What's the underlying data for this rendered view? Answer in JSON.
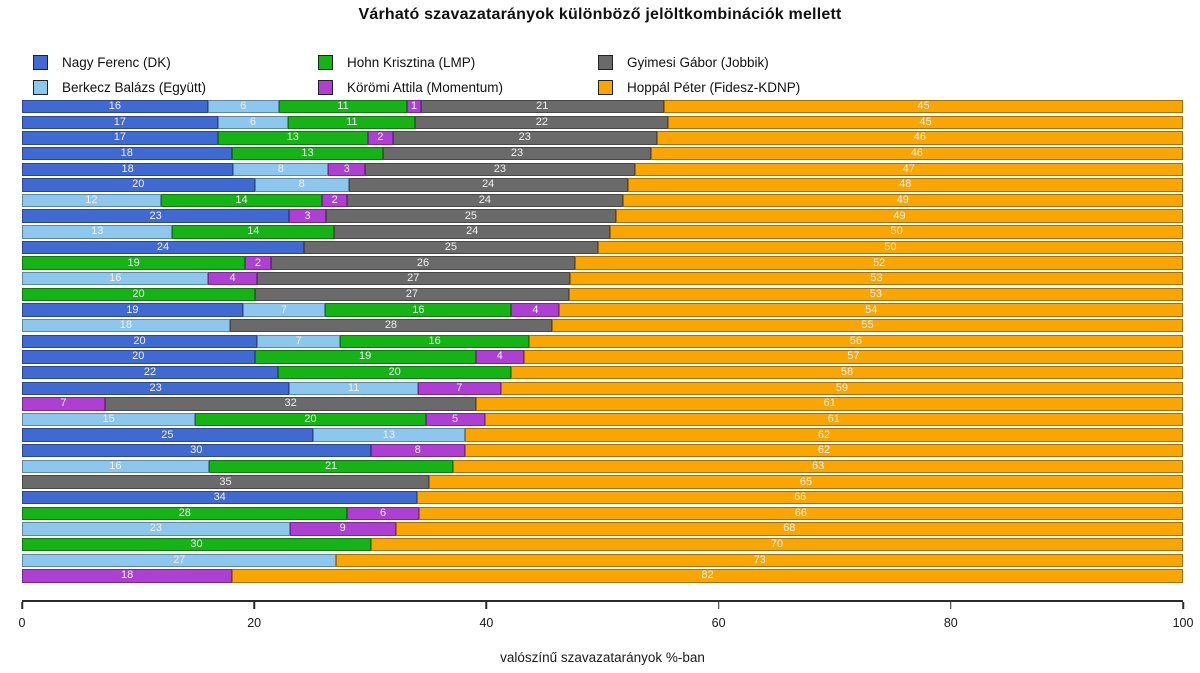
{
  "title": "Várható szavazatarányok különböző jelöltkombinációk mellett",
  "colors": {
    "dk": "#4169D2",
    "egyutt": "#8EC7EE",
    "lmp": "#16B316",
    "momentum": "#AE3FD3",
    "jobbik": "#6A6A6A",
    "fidesz": "#F9A602"
  },
  "legend": [
    {
      "key": "dk",
      "label": "Nagy Ferenc (DK)"
    },
    {
      "key": "egyutt",
      "label": "Berkecz Balázs (Együtt)"
    },
    {
      "key": "lmp",
      "label": "Hohn Krisztina (LMP)"
    },
    {
      "key": "momentum",
      "label": "Körömi Attila (Momentum)"
    },
    {
      "key": "jobbik",
      "label": "Gyimesi Gábor (Jobbik)"
    },
    {
      "key": "fidesz",
      "label": "Hoppál Péter (Fidesz-KDNP)"
    }
  ],
  "chart_data": {
    "type": "bar",
    "orientation": "horizontal-stacked",
    "xlabel": "valószínű szavazatarányok %-ban",
    "xlim": [
      0,
      100
    ],
    "x_ticks": [
      0,
      20,
      40,
      60,
      80,
      100
    ],
    "grid": false,
    "legend_position": "top",
    "series_keys": [
      "dk",
      "egyutt",
      "lmp",
      "momentum",
      "jobbik",
      "fidesz"
    ],
    "rows": [
      [
        [
          "dk",
          16
        ],
        [
          "egyutt",
          6
        ],
        [
          "lmp",
          11
        ],
        [
          "momentum",
          1
        ],
        [
          "jobbik",
          21
        ],
        [
          "fidesz",
          45
        ]
      ],
      [
        [
          "dk",
          17
        ],
        [
          "egyutt",
          6
        ],
        [
          "lmp",
          11
        ],
        [
          "jobbik",
          22
        ],
        [
          "fidesz",
          45
        ]
      ],
      [
        [
          "dk",
          17
        ],
        [
          "lmp",
          13
        ],
        [
          "momentum",
          2
        ],
        [
          "jobbik",
          23
        ],
        [
          "fidesz",
          46
        ]
      ],
      [
        [
          "dk",
          18
        ],
        [
          "lmp",
          13
        ],
        [
          "jobbik",
          23
        ],
        [
          "fidesz",
          46
        ]
      ],
      [
        [
          "dk",
          18
        ],
        [
          "egyutt",
          8
        ],
        [
          "momentum",
          3
        ],
        [
          "jobbik",
          23
        ],
        [
          "fidesz",
          47
        ]
      ],
      [
        [
          "dk",
          20
        ],
        [
          "egyutt",
          8
        ],
        [
          "jobbik",
          24
        ],
        [
          "fidesz",
          48
        ]
      ],
      [
        [
          "egyutt",
          12
        ],
        [
          "lmp",
          14
        ],
        [
          "momentum",
          2
        ],
        [
          "jobbik",
          24
        ],
        [
          "fidesz",
          49
        ]
      ],
      [
        [
          "dk",
          23
        ],
        [
          "momentum",
          3
        ],
        [
          "jobbik",
          25
        ],
        [
          "fidesz",
          49
        ]
      ],
      [
        [
          "egyutt",
          13
        ],
        [
          "lmp",
          14
        ],
        [
          "jobbik",
          24
        ],
        [
          "fidesz",
          50
        ]
      ],
      [
        [
          "dk",
          24
        ],
        [
          "jobbik",
          25
        ],
        [
          "fidesz",
          50
        ]
      ],
      [
        [
          "lmp",
          19
        ],
        [
          "momentum",
          2
        ],
        [
          "jobbik",
          26
        ],
        [
          "fidesz",
          52
        ]
      ],
      [
        [
          "egyutt",
          16
        ],
        [
          "momentum",
          4
        ],
        [
          "jobbik",
          27
        ],
        [
          "fidesz",
          53
        ]
      ],
      [
        [
          "lmp",
          20
        ],
        [
          "jobbik",
          27
        ],
        [
          "fidesz",
          53
        ]
      ],
      [
        [
          "dk",
          19
        ],
        [
          "egyutt",
          7
        ],
        [
          "lmp",
          16
        ],
        [
          "momentum",
          4
        ],
        [
          "fidesz",
          54
        ]
      ],
      [
        [
          "egyutt",
          18
        ],
        [
          "jobbik",
          28
        ],
        [
          "fidesz",
          55
        ]
      ],
      [
        [
          "dk",
          20
        ],
        [
          "egyutt",
          7
        ],
        [
          "lmp",
          16
        ],
        [
          "fidesz",
          56
        ]
      ],
      [
        [
          "dk",
          20
        ],
        [
          "lmp",
          19
        ],
        [
          "momentum",
          4
        ],
        [
          "fidesz",
          57
        ]
      ],
      [
        [
          "dk",
          22
        ],
        [
          "lmp",
          20
        ],
        [
          "fidesz",
          58
        ]
      ],
      [
        [
          "dk",
          23
        ],
        [
          "egyutt",
          11
        ],
        [
          "momentum",
          7
        ],
        [
          "fidesz",
          59
        ]
      ],
      [
        [
          "momentum",
          7
        ],
        [
          "jobbik",
          32
        ],
        [
          "fidesz",
          61
        ]
      ],
      [
        [
          "egyutt",
          15
        ],
        [
          "lmp",
          20
        ],
        [
          "momentum",
          5
        ],
        [
          "fidesz",
          61
        ]
      ],
      [
        [
          "dk",
          25
        ],
        [
          "egyutt",
          13
        ],
        [
          "fidesz",
          62
        ]
      ],
      [
        [
          "dk",
          30
        ],
        [
          "momentum",
          8
        ],
        [
          "fidesz",
          62
        ]
      ],
      [
        [
          "egyutt",
          16
        ],
        [
          "lmp",
          21
        ],
        [
          "fidesz",
          63
        ]
      ],
      [
        [
          "jobbik",
          35
        ],
        [
          "fidesz",
          65
        ]
      ],
      [
        [
          "dk",
          34
        ],
        [
          "fidesz",
          66
        ]
      ],
      [
        [
          "lmp",
          28
        ],
        [
          "momentum",
          6
        ],
        [
          "fidesz",
          66
        ]
      ],
      [
        [
          "egyutt",
          23
        ],
        [
          "momentum",
          9
        ],
        [
          "fidesz",
          68
        ]
      ],
      [
        [
          "lmp",
          30
        ],
        [
          "fidesz",
          70
        ]
      ],
      [
        [
          "egyutt",
          27
        ],
        [
          "fidesz",
          73
        ]
      ],
      [
        [
          "momentum",
          18
        ],
        [
          "fidesz",
          82
        ]
      ]
    ]
  }
}
